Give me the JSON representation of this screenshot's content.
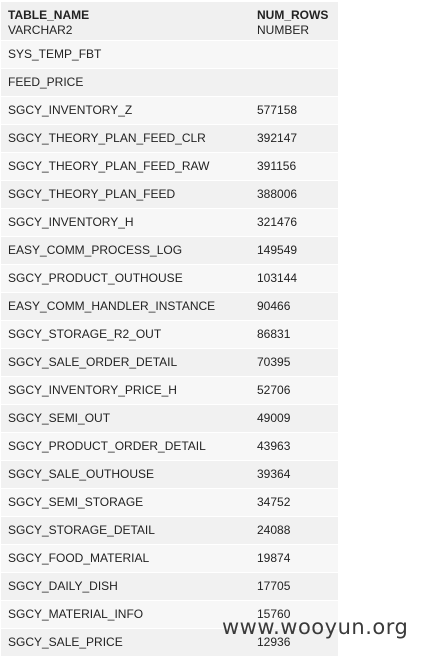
{
  "columns": [
    {
      "name": "TABLE_NAME",
      "type": "VARCHAR2"
    },
    {
      "name": "NUM_ROWS",
      "type": "NUMBER"
    }
  ],
  "rows": [
    {
      "table_name": "SYS_TEMP_FBT",
      "num_rows": ""
    },
    {
      "table_name": "FEED_PRICE",
      "num_rows": ""
    },
    {
      "table_name": "SGCY_INVENTORY_Z",
      "num_rows": "577158"
    },
    {
      "table_name": "SGCY_THEORY_PLAN_FEED_CLR",
      "num_rows": "392147"
    },
    {
      "table_name": "SGCY_THEORY_PLAN_FEED_RAW",
      "num_rows": "391156"
    },
    {
      "table_name": "SGCY_THEORY_PLAN_FEED",
      "num_rows": "388006"
    },
    {
      "table_name": "SGCY_INVENTORY_H",
      "num_rows": "321476"
    },
    {
      "table_name": "EASY_COMM_PROCESS_LOG",
      "num_rows": "149549"
    },
    {
      "table_name": "SGCY_PRODUCT_OUTHOUSE",
      "num_rows": "103144"
    },
    {
      "table_name": "EASY_COMM_HANDLER_INSTANCE",
      "num_rows": "90466"
    },
    {
      "table_name": "SGCY_STORAGE_R2_OUT",
      "num_rows": "86831"
    },
    {
      "table_name": "SGCY_SALE_ORDER_DETAIL",
      "num_rows": "70395"
    },
    {
      "table_name": "SGCY_INVENTORY_PRICE_H",
      "num_rows": "52706"
    },
    {
      "table_name": "SGCY_SEMI_OUT",
      "num_rows": "49009"
    },
    {
      "table_name": "SGCY_PRODUCT_ORDER_DETAIL",
      "num_rows": "43963"
    },
    {
      "table_name": "SGCY_SALE_OUTHOUSE",
      "num_rows": "39364"
    },
    {
      "table_name": "SGCY_SEMI_STORAGE",
      "num_rows": "34752"
    },
    {
      "table_name": "SGCY_STORAGE_DETAIL",
      "num_rows": "24088"
    },
    {
      "table_name": "SGCY_FOOD_MATERIAL",
      "num_rows": "19874"
    },
    {
      "table_name": "SGCY_DAILY_DISH",
      "num_rows": "17705"
    },
    {
      "table_name": "SGCY_MATERIAL_INFO",
      "num_rows": "15760"
    },
    {
      "table_name": "SGCY_SALE_PRICE",
      "num_rows": "12936"
    }
  ],
  "watermark": "www.wooyun.org"
}
